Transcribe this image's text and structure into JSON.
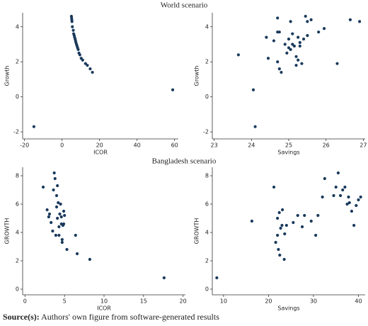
{
  "headings": [
    "World scenario",
    "Bangladesh scenario"
  ],
  "source": {
    "label": "Source(s):",
    "text": "Authors' own figure from software-generated results"
  },
  "chart_data": [
    {
      "type": "scatter",
      "x_label": "ICOR",
      "y_label": "Growth",
      "color": "#1a3a5c",
      "xlim": [
        -21,
        62
      ],
      "ylim": [
        -2.4,
        4.8
      ],
      "xticks": [
        -20,
        0,
        20,
        40,
        60
      ],
      "yticks": [
        -2,
        0,
        2,
        4
      ],
      "x": [
        5.0,
        5.1,
        5.2,
        5.3,
        5.5,
        6.0,
        6.2,
        6.5,
        6.7,
        7.0,
        7.2,
        7.4,
        7.7,
        8.0,
        8.3,
        8.6,
        9.0,
        9.5,
        10.2,
        11,
        12.5,
        13.5,
        15,
        16.2,
        -15,
        59
      ],
      "values": [
        4.6,
        4.5,
        4.4,
        4.3,
        4.0,
        3.8,
        3.6,
        3.5,
        3.4,
        3.3,
        3.2,
        3.1,
        3.0,
        2.9,
        2.8,
        2.7,
        2.5,
        2.4,
        2.2,
        2.1,
        1.9,
        1.8,
        1.6,
        1.4,
        -1.7,
        0.4
      ]
    },
    {
      "type": "scatter",
      "x_label": "Savings",
      "y_label": "Growth",
      "color": "#1a3a5c",
      "xlim": [
        22.95,
        27.05
      ],
      "ylim": [
        -2.4,
        4.8
      ],
      "xticks": [
        23,
        24,
        25,
        26,
        27
      ],
      "yticks": [
        -2,
        0,
        2,
        4
      ],
      "x": [
        23.65,
        24.05,
        24.1,
        24.4,
        24.45,
        24.6,
        24.7,
        24.7,
        24.75,
        24.7,
        24.75,
        24.8,
        24.9,
        24.95,
        25.0,
        25.0,
        25.05,
        25.1,
        25.1,
        25.15,
        25.2,
        25.2,
        25.25,
        25.25,
        25.3,
        25.3,
        25.35,
        25.4,
        25.45,
        25.5,
        25.5,
        25.6,
        25.8,
        25.95,
        26.3,
        26.65,
        26.9,
        25.05
      ],
      "values": [
        2.4,
        0.4,
        -1.7,
        3.4,
        2.2,
        3.2,
        4.5,
        3.7,
        3.7,
        2.0,
        1.6,
        1.4,
        3.0,
        2.5,
        3.3,
        2.8,
        2.7,
        3.6,
        3.0,
        2.9,
        2.3,
        1.8,
        3.4,
        2.1,
        3.1,
        2.9,
        1.9,
        3.3,
        4.6,
        3.5,
        4.3,
        4.4,
        3.7,
        3.9,
        1.9,
        4.4,
        4.3,
        4.3
      ]
    },
    {
      "type": "scatter",
      "x_label": "ICOR",
      "y_label": "GROWTH",
      "color": "#1a3a5c",
      "xlim": [
        -0.3,
        20.3
      ],
      "ylim": [
        -0.4,
        8.6
      ],
      "xticks": [
        0,
        5,
        10,
        15,
        20
      ],
      "yticks": [
        0,
        2,
        4,
        6,
        8
      ],
      "x": [
        2.3,
        2.8,
        3.1,
        3.3,
        3.5,
        3.6,
        3.7,
        3.8,
        3.9,
        4.0,
        4.0,
        4.1,
        4.1,
        4.2,
        4.3,
        4.3,
        4.4,
        4.5,
        4.6,
        4.6,
        4.7,
        4.7,
        4.9,
        4.9,
        5.0,
        5.3,
        6.4,
        6.6,
        8.2,
        17.6,
        3.0,
        4.8
      ],
      "values": [
        7.2,
        5.6,
        5.3,
        4.7,
        4.1,
        7.0,
        8.2,
        7.8,
        3.8,
        6.6,
        5.8,
        7.3,
        5.0,
        6.1,
        4.4,
        3.8,
        5.3,
        6.0,
        5.1,
        4.6,
        3.5,
        3.3,
        5.5,
        4.6,
        5.2,
        2.8,
        3.8,
        2.5,
        2.1,
        0.8,
        5.1,
        4.5
      ]
    },
    {
      "type": "scatter",
      "x_label": "Savings",
      "y_label": "GROWTH",
      "color": "#1a3a5c",
      "xlim": [
        7.5,
        41.5
      ],
      "ylim": [
        -0.4,
        8.6
      ],
      "xticks": [
        10,
        20,
        30,
        40
      ],
      "yticks": [
        0,
        2,
        4,
        6,
        8
      ],
      "x": [
        8.5,
        16.3,
        21.2,
        21.6,
        22,
        22,
        22.2,
        22.4,
        22.5,
        22.7,
        23,
        23.1,
        23.5,
        23.6,
        24,
        25.5,
        26.5,
        27.5,
        28,
        29.5,
        30.5,
        31,
        32,
        32.5,
        34.5,
        35,
        35.5,
        36,
        36.5,
        37,
        37.5,
        37.8,
        38,
        38.5,
        39,
        39.5,
        40,
        40.5
      ],
      "values": [
        0.8,
        4.8,
        7.2,
        3.3,
        5.0,
        3.8,
        2.8,
        5.4,
        2.4,
        4.3,
        4.5,
        5.6,
        2.1,
        3.9,
        4.5,
        4.7,
        5.2,
        4.4,
        5.2,
        4.8,
        3.8,
        5.2,
        6.5,
        7.8,
        6.6,
        7.2,
        8.2,
        6.6,
        7.0,
        7.2,
        6.0,
        6.5,
        6.1,
        5.5,
        4.5,
        5.9,
        6.3,
        6.5
      ]
    }
  ]
}
